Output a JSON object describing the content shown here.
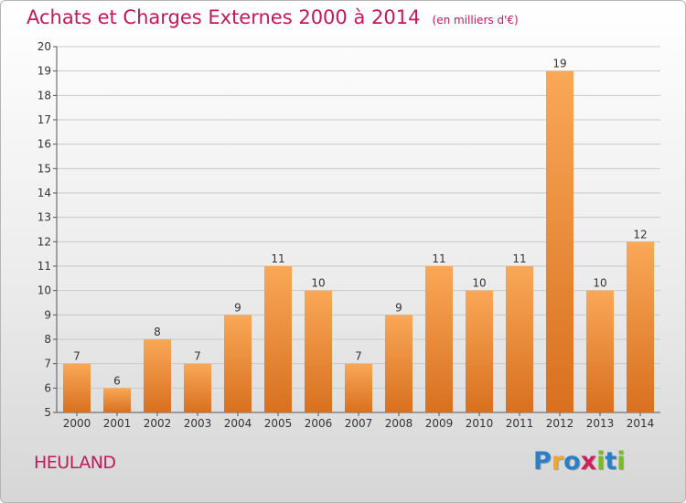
{
  "title": "Achats et Charges Externes 2000 à 2014",
  "unit_label": "(en milliers d'€)",
  "place_name": "HEULAND",
  "logo": {
    "letters": [
      "P",
      "r",
      "o",
      "x",
      "i",
      "t",
      "i"
    ],
    "colors": [
      "#2a7fc5",
      "#f5a623",
      "#2a7fc5",
      "#d11f5b",
      "#7ab929",
      "#2a7fc5",
      "#7ab929"
    ]
  },
  "colors": {
    "title": "#c4185c",
    "bar_top": "#f9a857",
    "bar_bottom": "#d8701f",
    "grid": "#c8c8c8",
    "axis_text": "#333333"
  },
  "chart_data": {
    "type": "bar",
    "categories": [
      "2000",
      "2001",
      "2002",
      "2003",
      "2004",
      "2005",
      "2006",
      "2007",
      "2008",
      "2009",
      "2010",
      "2011",
      "2012",
      "2013",
      "2014"
    ],
    "values": [
      7,
      6,
      8,
      7,
      9,
      11,
      10,
      7,
      9,
      11,
      10,
      11,
      19,
      10,
      12
    ],
    "ylim": [
      5,
      20
    ],
    "yticks": [
      5,
      6,
      7,
      8,
      9,
      10,
      11,
      12,
      13,
      14,
      15,
      16,
      17,
      18,
      19,
      20
    ],
    "grid": true
  }
}
